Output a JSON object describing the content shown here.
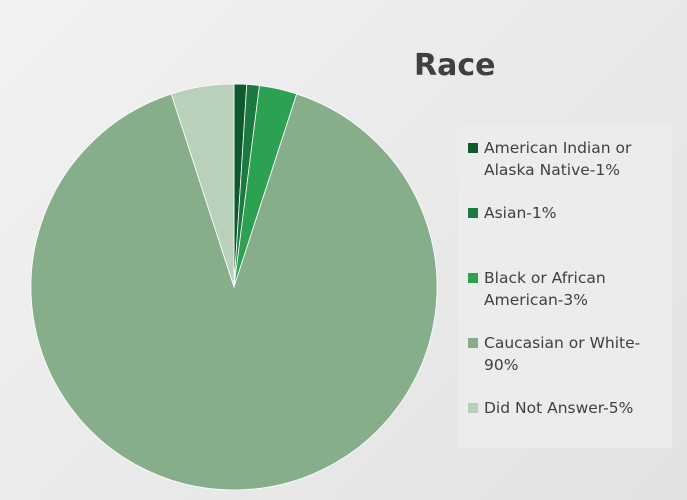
{
  "chart_data": {
    "type": "pie",
    "title": "Race",
    "categories": [
      "American Indian or Alaska Native-1%",
      "Asian-1%",
      "Black or African American-3%",
      "Caucasian or White-90%",
      "Did Not Answer-5%"
    ],
    "values": [
      1,
      1,
      3,
      90,
      5
    ],
    "colors": [
      "#0e5a2c",
      "#1b7a40",
      "#2ca152",
      "#86ae8b",
      "#b9d1bb"
    ],
    "legend": "right"
  }
}
